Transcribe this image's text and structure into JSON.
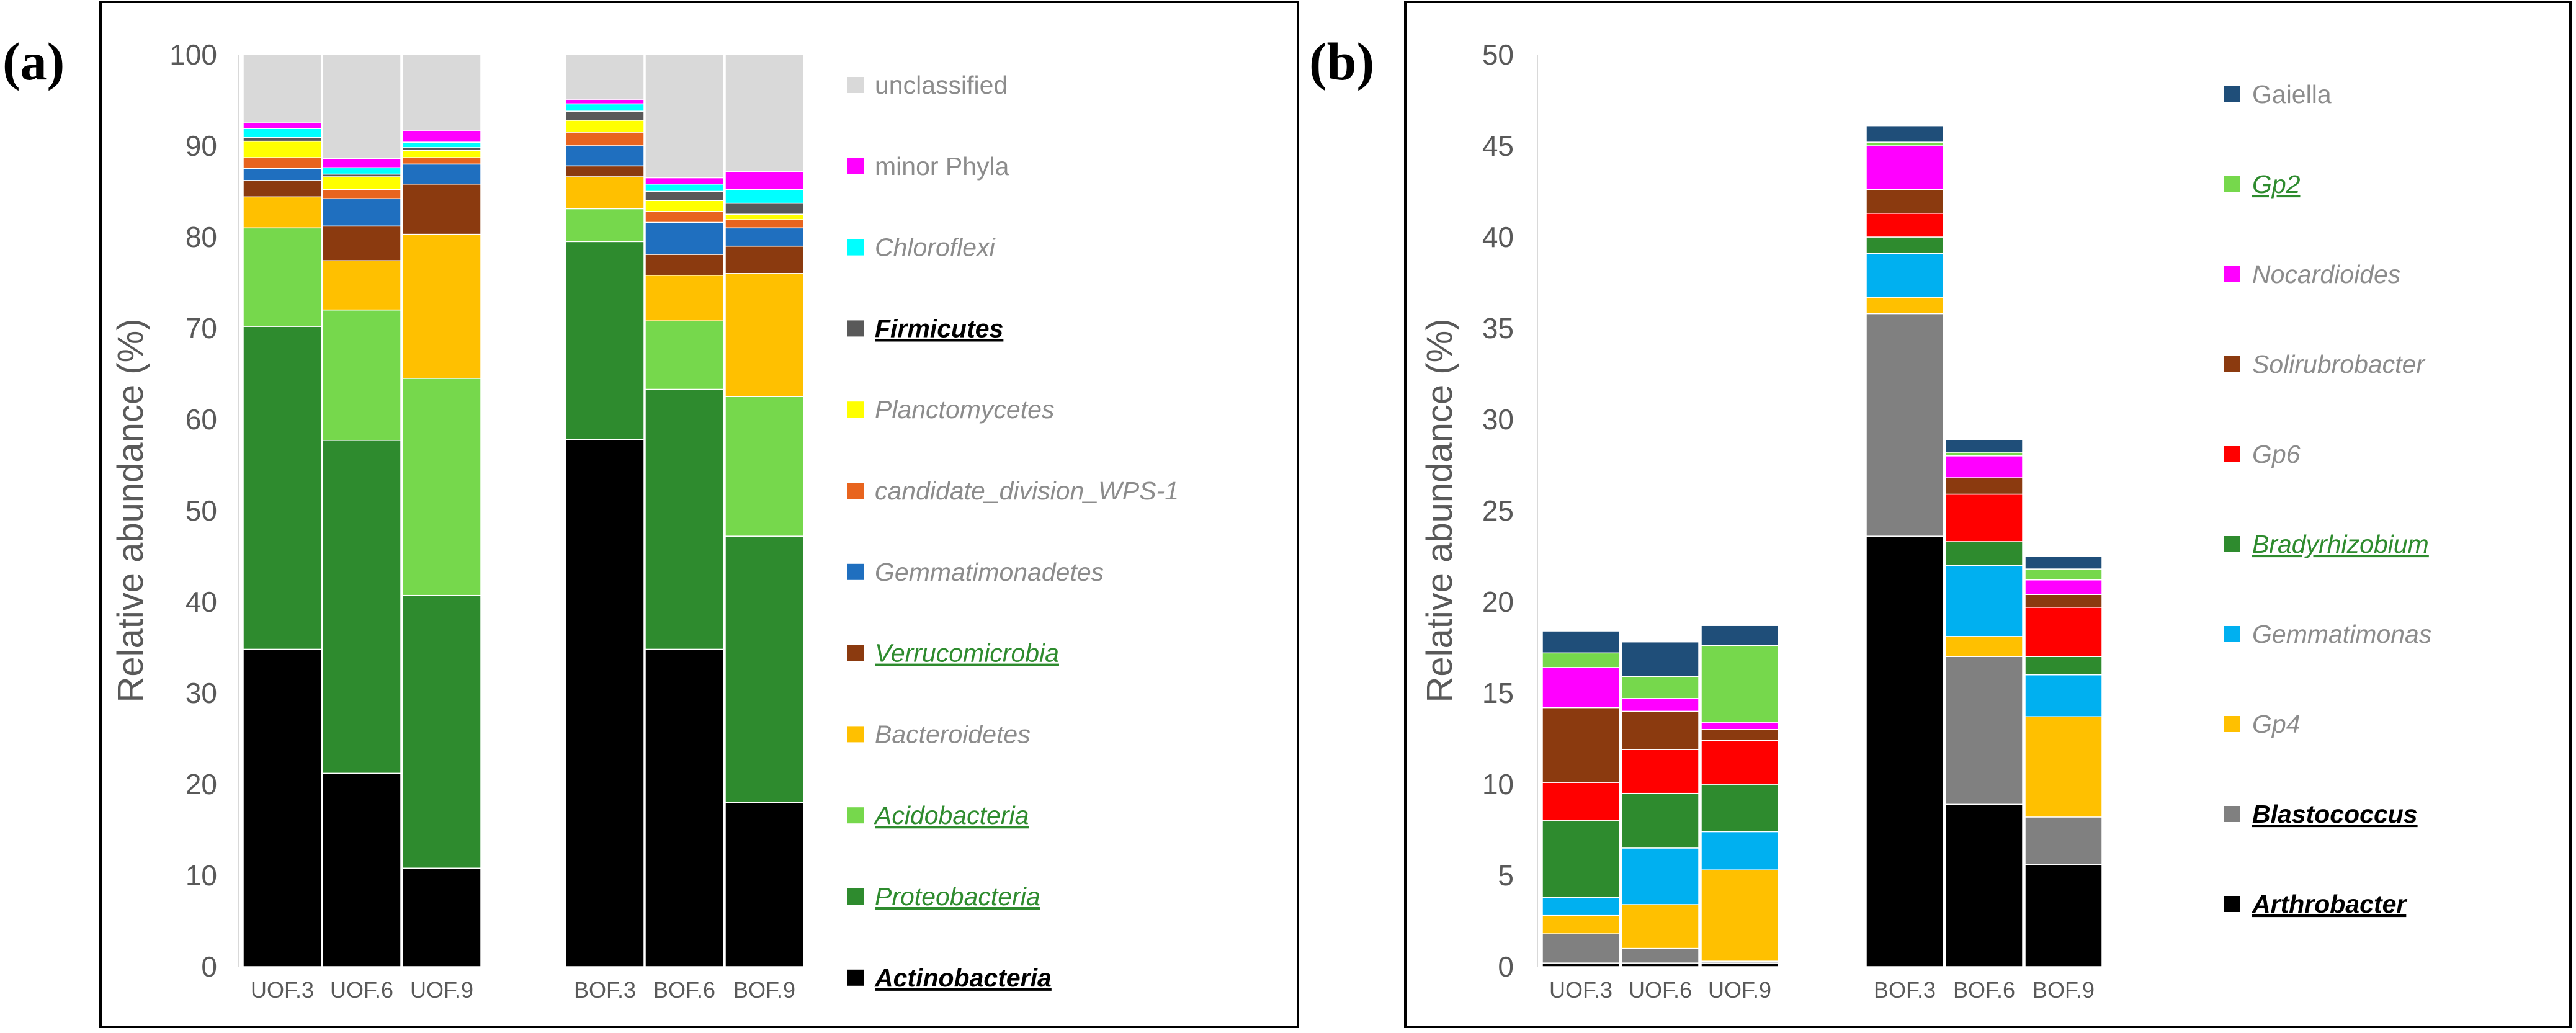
{
  "panels": [
    {
      "label": "(a)"
    },
    {
      "label": "(b)"
    }
  ],
  "chart_data": [
    {
      "type": "bar",
      "stacked": true,
      "title": "",
      "ylabel": "Relative abundance (%)",
      "xlabel": "",
      "ylim": [
        0,
        100
      ],
      "yticks": [
        "0",
        "10",
        "20",
        "30",
        "40",
        "50",
        "60",
        "70",
        "80",
        "90",
        "100"
      ],
      "grid": false,
      "legend_position": "right",
      "categories": [
        "UOF.3",
        "UOF.6",
        "UOF.9",
        "BOF.3",
        "BOF.6",
        "BOF.9"
      ],
      "series": [
        {
          "name": "Actinobacteria",
          "color": "#000000",
          "label_color": "#000000",
          "italic": true,
          "bold": true,
          "underline": true,
          "values": [
            34.8,
            21.2,
            10.8,
            57.8,
            34.8,
            18.0
          ]
        },
        {
          "name": "Proteobacteria",
          "color": "#2E8B2E",
          "label_color": "#2E8B2E",
          "italic": true,
          "bold": false,
          "underline": true,
          "values": [
            35.4,
            36.5,
            29.9,
            21.7,
            28.5,
            29.2
          ]
        },
        {
          "name": "Acidobacteria",
          "color": "#76D84C",
          "label_color": "#2E8B2E",
          "italic": true,
          "bold": false,
          "underline": true,
          "values": [
            10.8,
            14.3,
            23.8,
            3.6,
            7.5,
            15.3
          ]
        },
        {
          "name": "Bacteroidetes",
          "color": "#FFC000",
          "label_color": "#8C8C8C",
          "italic": true,
          "bold": false,
          "underline": false,
          "values": [
            3.4,
            5.4,
            15.8,
            3.5,
            5.0,
            13.5
          ]
        },
        {
          "name": "Verrucomicrobia",
          "color": "#8B3A0F",
          "label_color": "#2E8B2E",
          "italic": true,
          "bold": false,
          "underline": true,
          "values": [
            1.8,
            3.8,
            5.5,
            1.2,
            2.3,
            3.0
          ]
        },
        {
          "name": "Gemmatimonadetes",
          "color": "#1F6FBF",
          "label_color": "#8C8C8C",
          "italic": true,
          "bold": false,
          "underline": false,
          "values": [
            1.3,
            3.0,
            2.2,
            2.2,
            3.5,
            2.0
          ]
        },
        {
          "name": "candidate_division_WPS-1",
          "color": "#E8641E",
          "label_color": "#8C8C8C",
          "italic": true,
          "bold": false,
          "underline": false,
          "values": [
            1.2,
            1.0,
            0.7,
            1.5,
            1.2,
            0.9
          ]
        },
        {
          "name": "Planctomycetes",
          "color": "#FFFF00",
          "label_color": "#8C8C8C",
          "italic": true,
          "bold": false,
          "underline": false,
          "values": [
            1.8,
            1.4,
            0.8,
            1.3,
            1.2,
            0.6
          ]
        },
        {
          "name": "Firmicutes",
          "color": "#595959",
          "label_color": "#000000",
          "italic": true,
          "bold": true,
          "underline": true,
          "values": [
            0.4,
            0.3,
            0.3,
            1.0,
            1.0,
            1.2
          ]
        },
        {
          "name": "Chloroflexi",
          "color": "#00FFFF",
          "label_color": "#8C8C8C",
          "italic": true,
          "bold": false,
          "underline": false,
          "values": [
            1.0,
            0.7,
            0.6,
            0.8,
            0.8,
            1.5
          ]
        },
        {
          "name": "minor Phyla",
          "color": "#FF00FF",
          "label_color": "#8C8C8C",
          "italic": false,
          "bold": false,
          "underline": false,
          "values": [
            0.6,
            1.0,
            1.3,
            0.5,
            0.7,
            2.0
          ]
        },
        {
          "name": "unclassified",
          "color": "#D9D9D9",
          "label_color": "#8C8C8C",
          "italic": false,
          "bold": false,
          "underline": false,
          "values": [
            7.5,
            11.4,
            8.3,
            4.9,
            13.5,
            12.8
          ]
        }
      ]
    },
    {
      "type": "bar",
      "stacked": true,
      "title": "",
      "ylabel": "Relative abundance (%)",
      "xlabel": "",
      "ylim": [
        0,
        50
      ],
      "yticks": [
        "0",
        "5",
        "10",
        "15",
        "20",
        "25",
        "30",
        "35",
        "40",
        "45",
        "50"
      ],
      "grid": false,
      "legend_position": "right",
      "categories": [
        "UOF.3",
        "UOF.6",
        "UOF.9",
        "BOF.3",
        "BOF.6",
        "BOF.9"
      ],
      "series": [
        {
          "name": "Arthrobacter",
          "color": "#000000",
          "label_color": "#000000",
          "italic": true,
          "bold": true,
          "underline": true,
          "values": [
            0.2,
            0.2,
            0.2,
            23.6,
            8.9,
            5.6
          ]
        },
        {
          "name": "Blastococcus",
          "color": "#808080",
          "label_color": "#000000",
          "italic": true,
          "bold": true,
          "underline": true,
          "values": [
            1.6,
            0.8,
            0.1,
            12.2,
            8.1,
            2.6
          ]
        },
        {
          "name": "Gp4",
          "color": "#FFC000",
          "label_color": "#8C8C8C",
          "italic": true,
          "bold": false,
          "underline": false,
          "values": [
            1.0,
            2.4,
            5.0,
            0.9,
            1.1,
            5.5
          ]
        },
        {
          "name": "Gemmatimonas",
          "color": "#00B0F0",
          "label_color": "#8C8C8C",
          "italic": true,
          "bold": false,
          "underline": false,
          "values": [
            1.0,
            3.1,
            2.1,
            2.4,
            3.9,
            2.3
          ]
        },
        {
          "name": "Bradyrhizobium",
          "color": "#2E8B2E",
          "label_color": "#2E8B2E",
          "italic": true,
          "bold": false,
          "underline": true,
          "values": [
            4.2,
            3.0,
            2.6,
            0.9,
            1.3,
            1.0
          ]
        },
        {
          "name": "Gp6",
          "color": "#FF0000",
          "label_color": "#8C8C8C",
          "italic": true,
          "bold": false,
          "underline": false,
          "values": [
            2.1,
            2.4,
            2.4,
            1.3,
            2.6,
            2.7
          ]
        },
        {
          "name": "Solirubrobacter",
          "color": "#8B3A0F",
          "label_color": "#8C8C8C",
          "italic": true,
          "bold": false,
          "underline": false,
          "values": [
            4.1,
            2.1,
            0.6,
            1.3,
            0.9,
            0.7
          ]
        },
        {
          "name": "Nocardioides",
          "color": "#FF00FF",
          "label_color": "#8C8C8C",
          "italic": true,
          "bold": false,
          "underline": false,
          "values": [
            2.2,
            0.7,
            0.4,
            2.4,
            1.2,
            0.8
          ]
        },
        {
          "name": "Gp2",
          "color": "#76D84C",
          "label_color": "#2E8B2E",
          "italic": true,
          "bold": false,
          "underline": true,
          "values": [
            0.8,
            1.2,
            4.2,
            0.2,
            0.2,
            0.6
          ]
        },
        {
          "name": "Gaiella",
          "color": "#1F4E79",
          "label_color": "#8C8C8C",
          "italic": false,
          "bold": false,
          "underline": false,
          "values": [
            1.2,
            1.9,
            1.1,
            0.9,
            0.7,
            0.7
          ]
        }
      ]
    }
  ]
}
